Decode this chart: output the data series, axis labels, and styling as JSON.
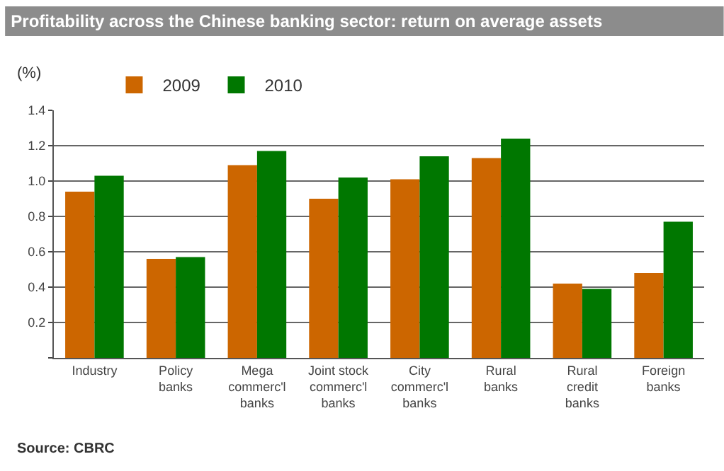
{
  "chart_data": {
    "type": "bar",
    "title": "Profitability across the Chinese banking sector: return on average assets",
    "ylabel": "(%)",
    "categories": [
      "Industry",
      "Policy\nbanks",
      "Mega\ncommerc'l\nbanks",
      "Joint stock\ncommerc'l\nbanks",
      "City\ncommerc'l\nbanks",
      "Rural\nbanks",
      "Rural\ncredit\nbanks",
      "Foreign\nbanks"
    ],
    "series": [
      {
        "name": "2009",
        "color": "#cc6600",
        "values": [
          0.94,
          0.56,
          1.09,
          0.9,
          1.01,
          1.13,
          0.42,
          0.48
        ]
      },
      {
        "name": "2010",
        "color": "#007700",
        "values": [
          1.03,
          0.57,
          1.17,
          1.02,
          1.14,
          1.24,
          0.39,
          0.77
        ]
      }
    ],
    "ylim": [
      0,
      1.4
    ],
    "yticks": [
      {
        "value": 0,
        "label": null
      },
      0.2,
      0.4,
      0.6,
      0.8,
      {
        "value": 1,
        "label": "1.0"
      },
      1.2,
      1.4
    ],
    "grid": "y",
    "legend": "top left",
    "annotations": [
      "Source: CBRC"
    ]
  }
}
